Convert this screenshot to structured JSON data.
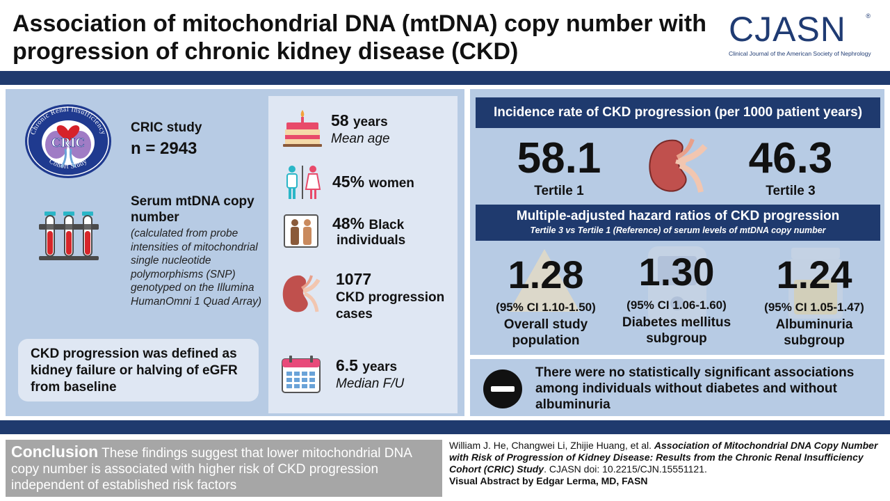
{
  "title": "Association of mitochondrial DNA (mtDNA) copy number with progression of chronic kidney disease (CKD)",
  "logo": {
    "text": "CJASN",
    "registered": "®",
    "subtitle": "Clinical Journal of the American Society of Nephrology"
  },
  "cric": {
    "logo_arc_top": "Chronic Renal Insufficiency",
    "logo_arc_bottom": "Cohort Study",
    "logo_center": "CRIC",
    "title": "CRIC study",
    "n": "n = 2943"
  },
  "mtdna": {
    "title": "Serum mtDNA copy number",
    "description": "(calculated from probe intensities of mitochondrial single nucleotide polymorphisms (SNP) genotyped on the Illumina HumanOmni 1 Quad Array)"
  },
  "definition": "CKD progression was defined as kidney failure or halving of eGFR from baseline",
  "stats": {
    "age_value": "58",
    "age_unit": "years",
    "age_label": "Mean age",
    "women_value": "45%",
    "women_label": "women",
    "black_value": "48%",
    "black_label": "Black",
    "black_label2": "individuals",
    "cases_value": "1077",
    "cases_label": "CKD progression",
    "cases_label2": "cases",
    "fu_value": "6.5",
    "fu_unit": "years",
    "fu_label": "Median F/U"
  },
  "incidence": {
    "header": "Incidence rate of CKD progression (per 1000 patient years)",
    "t1_value": "58.1",
    "t1_label": "Tertile 1",
    "t3_value": "46.3",
    "t3_label": "Tertile 3"
  },
  "hazard": {
    "title": "Multiple-adjusted hazard ratios of CKD progression",
    "subtitle": "Tertile 3 vs Tertile 1 (Reference) of serum levels of mtDNA copy number",
    "items": [
      {
        "value": "1.28",
        "ci": "(95% CI 1.10-1.50)",
        "label1": "Overall study",
        "label2": "population"
      },
      {
        "value": "1.30",
        "ci": "(95% CI 1.06-1.60)",
        "label1": "Diabetes mellitus",
        "label2": "subgroup"
      },
      {
        "value": "1.24",
        "ci": "(95% CI 1.05-1.47)",
        "label1": "Albuminuria",
        "label2": "subgroup"
      }
    ]
  },
  "no_significance": "There were no statistically significant associations among individuals without diabetes and without albuminuria",
  "conclusion": {
    "label": "Conclusion",
    "text": "These findings suggest that lower mitochondrial DNA copy number is associated with higher risk of CKD progression independent of established risk factors"
  },
  "citation": {
    "authors": "William J. He, Changwei Li, Zhijie Huang, et al.",
    "title": "Association of Mitochondrial DNA Copy Number with Risk of Progression of Kidney Disease: Results from the Chronic Renal Insufficiency Cohort (CRIC) Study",
    "doi": ". CJASN doi: 10.2215/CJN.15551121.",
    "visual_by": "Visual Abstract by Edgar Lerma, MD, FASN"
  },
  "colors": {
    "navy": "#1f3a6e",
    "panel": "#b7cbe4",
    "panel_light": "#dfe7f3",
    "kidney": "#c0504d",
    "conclusion_bg": "#a6a6a6"
  }
}
